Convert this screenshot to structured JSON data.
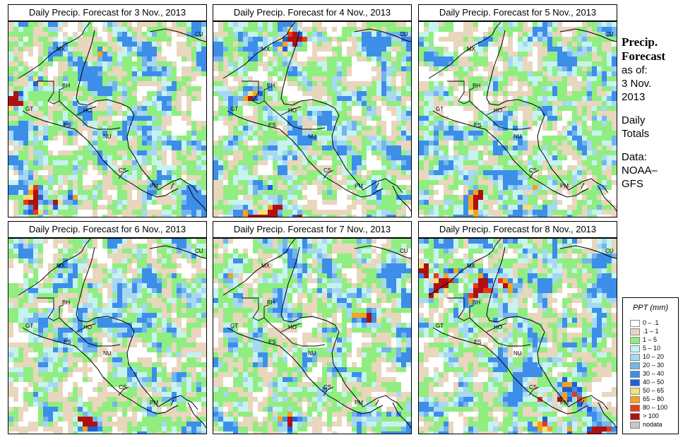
{
  "panels": [
    {
      "title": "Daily Precip. Forecast for  3 Nov., 2013"
    },
    {
      "title": "Daily Precip. Forecast for  4 Nov., 2013"
    },
    {
      "title": "Daily Precip. Forecast for  5 Nov., 2013"
    },
    {
      "title": "Daily Precip. Forecast for  6 Nov., 2013"
    },
    {
      "title": "Daily Precip. Forecast for  7 Nov., 2013"
    },
    {
      "title": "Daily Precip. Forecast for  8 Nov., 2013"
    }
  ],
  "country_labels": [
    "MX",
    "BH",
    "GT",
    "HO",
    "ES",
    "NU",
    "CS",
    "PM",
    "CU"
  ],
  "info": {
    "title_line1": "Precip.",
    "title_line2": "Forecast",
    "asof": "as of:",
    "date_line1": "3 Nov.",
    "date_line2": "2013",
    "daily1": "Daily",
    "daily2": "Totals",
    "data1": "Data:",
    "data2": "NOAA–",
    "data3": "GFS"
  },
  "legend": {
    "title": "PPT (mm)",
    "items": [
      {
        "label": "0 – .1",
        "color": "#ffffff"
      },
      {
        "label": ".1 – 1",
        "color": "#e8d6bd"
      },
      {
        "label": "1 – 5",
        "color": "#90ee80"
      },
      {
        "label": "5 – 10",
        "color": "#c6f3f0"
      },
      {
        "label": "10 – 20",
        "color": "#a6d8f2"
      },
      {
        "label": "20 – 30",
        "color": "#73b5ec"
      },
      {
        "label": "30 – 40",
        "color": "#3d8ee8"
      },
      {
        "label": "40 – 50",
        "color": "#1f5fd8"
      },
      {
        "label": "50 – 65",
        "color": "#f4e07a"
      },
      {
        "label": "65 – 80",
        "color": "#f4a21f"
      },
      {
        "label": "80 – 100",
        "color": "#e83a18"
      },
      {
        "label": "> 100",
        "color": "#b01010"
      },
      {
        "label": "nodata",
        "color": "#c8c8c8"
      }
    ]
  }
}
